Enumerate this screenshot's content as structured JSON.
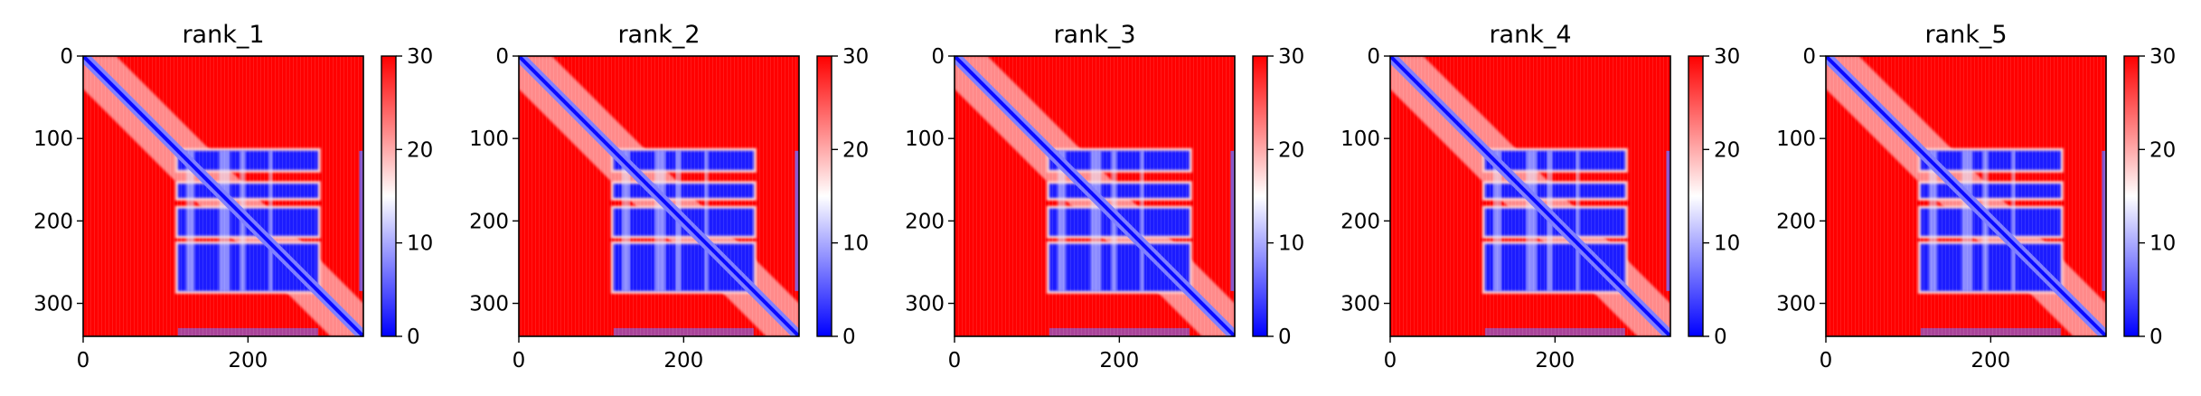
{
  "chart_data": {
    "type": "heatmap",
    "colormap": {
      "name": "bwr",
      "low": "#0000ff",
      "mid": "#ffffff",
      "high": "#ff0000"
    },
    "clim": [
      0,
      30
    ],
    "colorbar_ticks": [
      "0",
      "10",
      "20",
      "30"
    ],
    "x_ticks": [
      "0",
      "200"
    ],
    "y_ticks": [
      "0",
      "100",
      "200",
      "300"
    ],
    "matrix_size": 340,
    "features": {
      "domain_start": 115,
      "domain_end": 285,
      "blue_row_bands": [
        [
          115,
          138
        ],
        [
          155,
          172
        ],
        [
          185,
          218
        ],
        [
          228,
          285
        ]
      ],
      "white_column_bands": [
        [
          125,
          135
        ],
        [
          165,
          178
        ],
        [
          190,
          197
        ],
        [
          225,
          230
        ]
      ],
      "right_edge_blue": [
        [
          335,
          340
        ]
      ],
      "bottom_edge_blue": [
        [
          330,
          340
        ]
      ]
    },
    "panels": [
      {
        "title": "rank_1"
      },
      {
        "title": "rank_2"
      },
      {
        "title": "rank_3"
      },
      {
        "title": "rank_4"
      },
      {
        "title": "rank_5"
      }
    ]
  }
}
